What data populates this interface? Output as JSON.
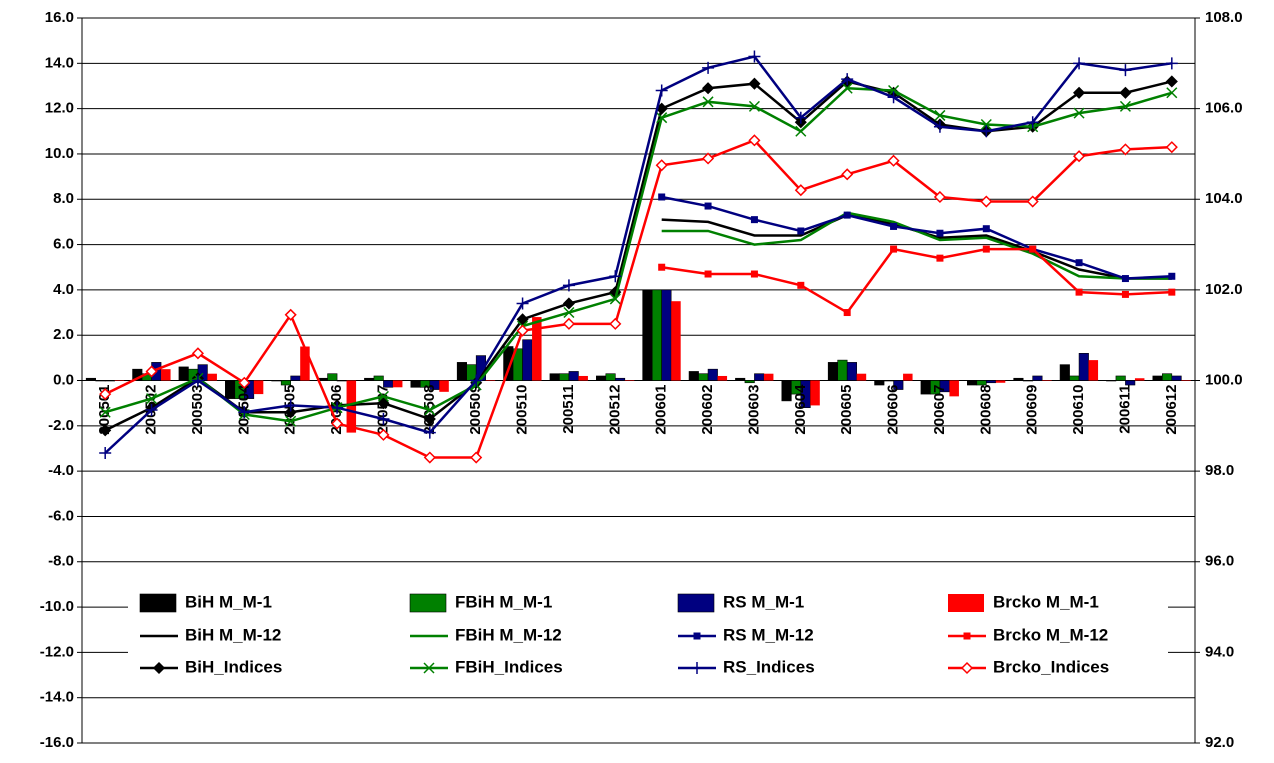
{
  "chart_data": {
    "type": "bar",
    "categories": [
      "200501",
      "200502",
      "200503",
      "200504",
      "200505",
      "200506",
      "200507",
      "200508",
      "200509",
      "200510",
      "200511",
      "200512",
      "200601",
      "200602",
      "200603",
      "200604",
      "200605",
      "200606",
      "200607",
      "200608",
      "200609",
      "200610",
      "200611",
      "200612"
    ],
    "ylim": [
      -16,
      16
    ],
    "yticks": [
      {
        "value": -16,
        "label": "-16.0"
      },
      {
        "value": -14,
        "label": "-14.0"
      },
      {
        "value": -12,
        "label": "-12.0"
      },
      {
        "value": -10,
        "label": "-10.0"
      },
      {
        "value": -8,
        "label": "-8.0"
      },
      {
        "value": -6,
        "label": "-6.0"
      },
      {
        "value": -4,
        "label": "-4.0"
      },
      {
        "value": -2,
        "label": "-2.0"
      },
      {
        "value": 0,
        "label": "0.0"
      },
      {
        "value": 2,
        "label": "2.0"
      },
      {
        "value": 4,
        "label": "4.0"
      },
      {
        "value": 6,
        "label": "6.0"
      },
      {
        "value": 8,
        "label": "8.0"
      },
      {
        "value": 10,
        "label": "10.0"
      },
      {
        "value": 12,
        "label": "12.0"
      },
      {
        "value": 14,
        "label": "14.0"
      },
      {
        "value": 16,
        "label": "16.0"
      }
    ],
    "y2lim": [
      92,
      108
    ],
    "y2ticks": [
      {
        "value": 92,
        "label": "92.0"
      },
      {
        "value": 94,
        "label": "94.0"
      },
      {
        "value": 96,
        "label": "96.0"
      },
      {
        "value": 98,
        "label": "98.0"
      },
      {
        "value": 100,
        "label": "100.0"
      },
      {
        "value": 102,
        "label": "102.0"
      },
      {
        "value": 104,
        "label": "104.0"
      },
      {
        "value": 106,
        "label": "106.0"
      },
      {
        "value": 108,
        "label": "108.0"
      }
    ],
    "grid": true,
    "series": [
      {
        "name": "BiH M_M-1",
        "type": "bar",
        "color": "#000000",
        "values": [
          0.1,
          0.5,
          0.6,
          -0.8,
          0.0,
          0.1,
          0.1,
          -0.3,
          0.8,
          1.5,
          0.3,
          0.2,
          4.0,
          0.4,
          0.1,
          -0.9,
          0.8,
          -0.2,
          -0.6,
          -0.2,
          0.1,
          0.7,
          0.0,
          0.2
        ]
      },
      {
        "name": "FBiH M_M-1",
        "type": "bar",
        "color": "#008000",
        "values": [
          0.0,
          0.3,
          0.5,
          -0.8,
          -0.2,
          0.3,
          0.2,
          -0.3,
          0.7,
          1.4,
          0.3,
          0.3,
          4.0,
          0.3,
          -0.1,
          -0.6,
          0.9,
          0.0,
          -0.6,
          -0.2,
          0.0,
          0.2,
          0.2,
          0.3
        ]
      },
      {
        "name": "RS M_M-1",
        "type": "bar",
        "color": "#000080",
        "values": [
          0.0,
          0.8,
          0.7,
          -0.8,
          0.2,
          0.0,
          -0.3,
          -0.4,
          1.1,
          1.8,
          0.4,
          0.1,
          4.0,
          0.5,
          0.3,
          -1.2,
          0.8,
          -0.4,
          -0.5,
          -0.1,
          0.2,
          1.2,
          -0.2,
          0.2
        ]
      },
      {
        "name": "Brcko M_M-1",
        "type": "bar",
        "color": "#ff0000",
        "values": [
          0.0,
          0.5,
          0.3,
          -0.6,
          1.5,
          -2.3,
          -0.3,
          -0.5,
          0.0,
          2.8,
          0.2,
          0.0,
          3.5,
          0.2,
          0.3,
          -1.1,
          0.3,
          0.3,
          -0.7,
          -0.1,
          0.0,
          0.9,
          0.1,
          0.0
        ]
      },
      {
        "name": "BiH M_M-12",
        "type": "line",
        "color": "#000000",
        "marker": "none",
        "values": [
          null,
          null,
          null,
          null,
          null,
          null,
          null,
          null,
          null,
          null,
          null,
          null,
          7.1,
          7.0,
          6.4,
          6.4,
          7.3,
          6.9,
          6.3,
          6.4,
          5.7,
          4.9,
          4.5,
          4.5
        ]
      },
      {
        "name": "FBiH M_M-12",
        "type": "line",
        "color": "#008000",
        "marker": "none",
        "values": [
          null,
          null,
          null,
          null,
          null,
          null,
          null,
          null,
          null,
          null,
          null,
          null,
          6.6,
          6.6,
          6.0,
          6.2,
          7.4,
          7.0,
          6.2,
          6.3,
          5.6,
          4.6,
          4.5,
          4.5
        ]
      },
      {
        "name": "RS M_M-12",
        "type": "line",
        "color": "#000080",
        "marker": "square",
        "values": [
          null,
          null,
          null,
          null,
          null,
          null,
          null,
          null,
          null,
          null,
          null,
          null,
          8.1,
          7.7,
          7.1,
          6.6,
          7.3,
          6.8,
          6.5,
          6.7,
          5.8,
          5.2,
          4.5,
          4.6
        ]
      },
      {
        "name": "Brcko M_M-12",
        "type": "line",
        "color": "#ff0000",
        "marker": "square",
        "values": [
          null,
          null,
          null,
          null,
          null,
          null,
          null,
          null,
          null,
          null,
          null,
          null,
          5.0,
          4.7,
          4.7,
          4.2,
          3.0,
          5.8,
          5.4,
          5.8,
          5.8,
          3.9,
          3.8,
          3.9
        ]
      },
      {
        "name": "BiH_Indices",
        "type": "line",
        "axis": "y2",
        "color": "#000000",
        "marker": "diamond",
        "values": [
          98.9,
          99.4,
          100.05,
          99.3,
          99.3,
          99.45,
          99.5,
          99.15,
          99.95,
          101.35,
          101.7,
          101.95,
          106.0,
          106.45,
          106.55,
          105.7,
          106.6,
          106.35,
          105.65,
          105.5,
          105.6,
          106.35,
          106.35,
          106.6
        ]
      },
      {
        "name": "FBiH_Indices",
        "type": "line",
        "axis": "y2",
        "color": "#008000",
        "marker": "x",
        "values": [
          99.3,
          99.6,
          100.05,
          99.25,
          99.1,
          99.4,
          99.65,
          99.35,
          99.9,
          101.2,
          101.5,
          101.8,
          105.8,
          106.15,
          106.05,
          105.5,
          106.45,
          106.4,
          105.85,
          105.65,
          105.6,
          105.9,
          106.05,
          106.35
        ]
      },
      {
        "name": "RS_Indices",
        "type": "line",
        "axis": "y2",
        "color": "#000080",
        "marker": "plus",
        "values": [
          98.4,
          99.35,
          100.0,
          99.3,
          99.45,
          99.4,
          99.15,
          98.85,
          100.0,
          101.7,
          102.1,
          102.3,
          106.4,
          106.9,
          107.15,
          105.8,
          106.65,
          106.25,
          105.6,
          105.5,
          105.7,
          107.0,
          106.85,
          107.0
        ]
      },
      {
        "name": "Brcko_Indices",
        "type": "line",
        "axis": "y2",
        "color": "#ff0000",
        "marker": "diamond-open",
        "values": [
          99.7,
          100.2,
          100.6,
          99.95,
          101.45,
          99.05,
          98.8,
          98.3,
          98.3,
          101.1,
          101.25,
          101.25,
          104.75,
          104.9,
          105.3,
          104.2,
          104.55,
          104.85,
          104.05,
          103.95,
          103.95,
          104.95,
          105.1,
          105.15
        ]
      }
    ]
  }
}
